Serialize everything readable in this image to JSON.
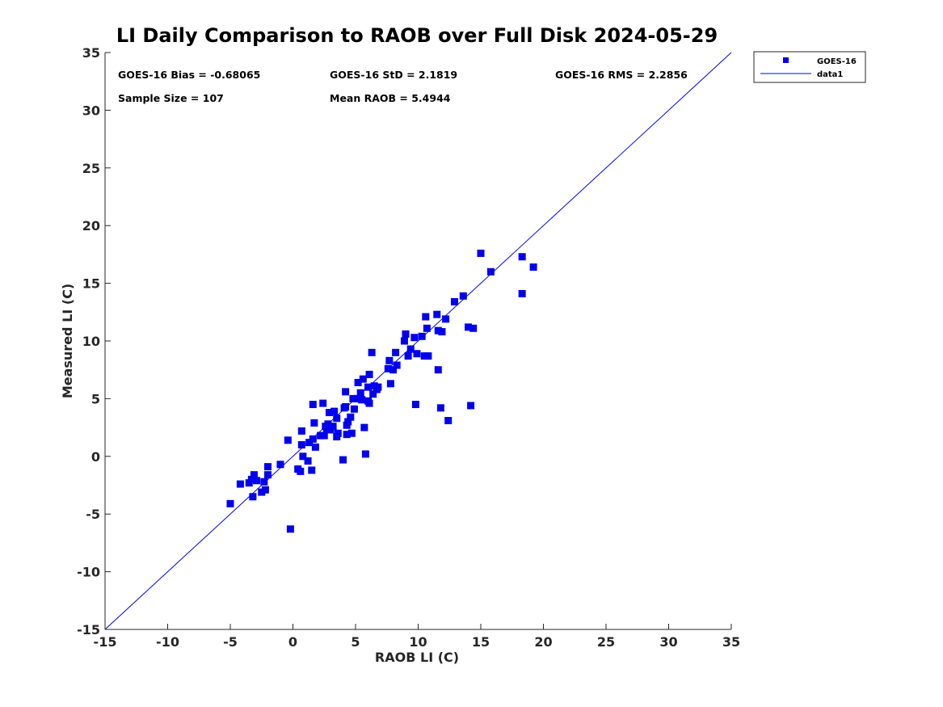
{
  "chart_data": {
    "type": "scatter",
    "title": "LI Daily Comparison to RAOB over Full Disk 2024-05-29",
    "xlabel": "RAOB LI (C)",
    "ylabel": "Measured LI (C)",
    "xlim": [
      -15,
      35
    ],
    "ylim": [
      -15,
      35
    ],
    "xticks": [
      -15,
      -10,
      -5,
      0,
      5,
      10,
      15,
      20,
      25,
      30,
      35
    ],
    "yticks": [
      -15,
      -10,
      -5,
      0,
      5,
      10,
      15,
      20,
      25,
      30,
      35
    ],
    "xtick_labels": [
      "-15",
      "-10",
      "-5",
      "0",
      "5",
      "10",
      "15",
      "20",
      "25",
      "30",
      "35"
    ],
    "ytick_labels": [
      "-15",
      "-10",
      "-5",
      "0",
      "5",
      "10",
      "15",
      "20",
      "25",
      "30",
      "35"
    ],
    "grid": false,
    "legend_position": "outside-top-right",
    "colors": {
      "marker": "#0000ee",
      "line": "#0000ee",
      "axis": "#262626"
    },
    "annotations": {
      "bias": "GOES-16 Bias = -0.68065",
      "std": "GOES-16 StD = 2.1819",
      "rms": "GOES-16 RMS = 2.2856",
      "sample_size": "Sample Size = 107",
      "mean_raob": "Mean RAOB = 5.4944"
    },
    "series": [
      {
        "name": "GOES-16",
        "kind": "scatter",
        "marker": "square",
        "points": [
          [
            -5.0,
            -4.1
          ],
          [
            -4.2,
            -2.4
          ],
          [
            -3.5,
            -2.3
          ],
          [
            -3.3,
            -2.0
          ],
          [
            -3.1,
            -1.6
          ],
          [
            -3.2,
            -3.5
          ],
          [
            -2.9,
            -2.1
          ],
          [
            -2.5,
            -3.1
          ],
          [
            -2.3,
            -2.2
          ],
          [
            -2.2,
            -2.9
          ],
          [
            -2.0,
            -1.6
          ],
          [
            -2.0,
            -0.9
          ],
          [
            -1.0,
            -0.7
          ],
          [
            -0.4,
            1.4
          ],
          [
            -0.2,
            -6.3
          ],
          [
            0.4,
            -1.1
          ],
          [
            0.6,
            -1.3
          ],
          [
            0.7,
            1.0
          ],
          [
            0.7,
            2.2
          ],
          [
            0.8,
            0.0
          ],
          [
            1.2,
            -0.4
          ],
          [
            1.3,
            1.2
          ],
          [
            1.5,
            -1.2
          ],
          [
            1.6,
            4.5
          ],
          [
            1.6,
            1.5
          ],
          [
            1.7,
            2.9
          ],
          [
            1.8,
            0.8
          ],
          [
            2.2,
            1.8
          ],
          [
            2.4,
            4.6
          ],
          [
            2.5,
            1.8
          ],
          [
            2.6,
            2.6
          ],
          [
            2.7,
            2.4
          ],
          [
            2.8,
            2.8
          ],
          [
            2.9,
            3.8
          ],
          [
            3.0,
            2.3
          ],
          [
            3.2,
            2.6
          ],
          [
            3.3,
            3.9
          ],
          [
            3.5,
            3.3
          ],
          [
            3.5,
            1.7
          ],
          [
            3.6,
            2.0
          ],
          [
            4.0,
            -0.3
          ],
          [
            4.1,
            4.2
          ],
          [
            4.2,
            4.3
          ],
          [
            4.2,
            5.6
          ],
          [
            4.3,
            2.7
          ],
          [
            4.3,
            1.9
          ],
          [
            4.4,
            3.0
          ],
          [
            4.6,
            3.4
          ],
          [
            4.7,
            2.0
          ],
          [
            4.8,
            5.0
          ],
          [
            4.9,
            4.1
          ],
          [
            5.1,
            5.0
          ],
          [
            5.2,
            6.4
          ],
          [
            5.4,
            5.5
          ],
          [
            5.5,
            4.9
          ],
          [
            5.6,
            6.7
          ],
          [
            5.7,
            2.5
          ],
          [
            5.8,
            0.2
          ],
          [
            6.0,
            4.8
          ],
          [
            6.0,
            6.0
          ],
          [
            6.1,
            7.1
          ],
          [
            6.1,
            4.6
          ],
          [
            6.3,
            9.0
          ],
          [
            6.4,
            5.4
          ],
          [
            6.5,
            6.1
          ],
          [
            6.7,
            5.8
          ],
          [
            6.8,
            6.0
          ],
          [
            7.6,
            7.6
          ],
          [
            7.7,
            8.3
          ],
          [
            7.8,
            6.3
          ],
          [
            8.0,
            7.5
          ],
          [
            8.2,
            9.0
          ],
          [
            8.3,
            7.9
          ],
          [
            8.9,
            10.0
          ],
          [
            9.0,
            10.6
          ],
          [
            9.2,
            8.7
          ],
          [
            9.4,
            9.3
          ],
          [
            9.7,
            10.3
          ],
          [
            9.8,
            4.5
          ],
          [
            9.9,
            8.9
          ],
          [
            10.3,
            10.4
          ],
          [
            10.5,
            8.7
          ],
          [
            10.6,
            12.1
          ],
          [
            10.7,
            11.1
          ],
          [
            10.8,
            8.7
          ],
          [
            11.5,
            12.3
          ],
          [
            11.6,
            7.5
          ],
          [
            11.6,
            10.9
          ],
          [
            11.8,
            4.2
          ],
          [
            11.9,
            10.8
          ],
          [
            12.2,
            11.9
          ],
          [
            12.4,
            3.1
          ],
          [
            12.9,
            13.4
          ],
          [
            13.6,
            13.9
          ],
          [
            14.0,
            11.2
          ],
          [
            14.2,
            4.4
          ],
          [
            14.4,
            11.1
          ],
          [
            15.0,
            17.6
          ],
          [
            15.8,
            16.0
          ],
          [
            18.3,
            17.3
          ],
          [
            18.3,
            14.1
          ],
          [
            19.2,
            16.4
          ]
        ]
      },
      {
        "name": "data1",
        "kind": "line",
        "points": [
          [
            -15,
            -15
          ],
          [
            35,
            35
          ]
        ]
      }
    ]
  }
}
